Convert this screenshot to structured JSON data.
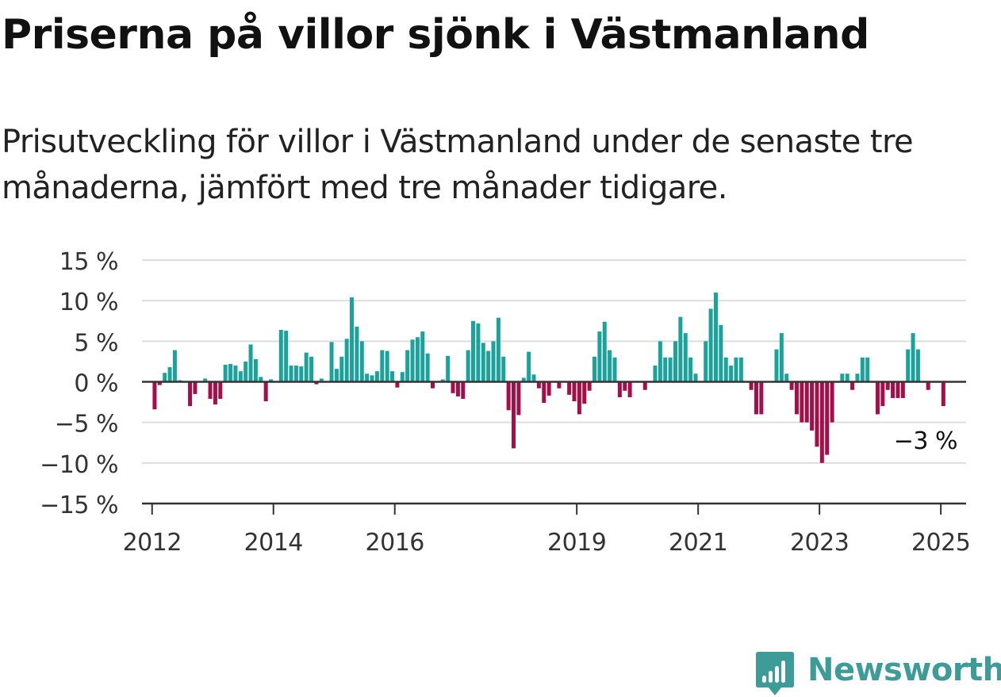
{
  "title": "Priserna på villor sjönk i Västmanland",
  "subtitle": "Prisutveckling för villor i Västmanland under de senaste tre månaderna, jämfört med tre månader tidigare.",
  "brand": {
    "name": "Newsworthy",
    "logo_icon": "bar-chart-bubble-icon",
    "color": "#3d9c98"
  },
  "colors": {
    "positive": "#1aa39b",
    "negative": "#a50e47",
    "axis": "#333333",
    "grid": "#dddddd",
    "text": "#333333"
  },
  "chart_data": {
    "type": "bar",
    "title": "Priserna på villor sjönk i Västmanland",
    "xlabel": "",
    "ylabel": "",
    "unit": "%",
    "ylim": [
      -15,
      15
    ],
    "yticks": [
      15,
      10,
      5,
      0,
      -5,
      -10,
      -15
    ],
    "ytick_labels": [
      "15 %",
      "10 %",
      "5 %",
      "0 %",
      "−5 %",
      "−10 %",
      "−15 %"
    ],
    "grid": true,
    "x_range": [
      "2011-11",
      "2025-06"
    ],
    "xticks": [
      {
        "label": "2012",
        "date": "2012-01"
      },
      {
        "label": "2014",
        "date": "2014-01"
      },
      {
        "label": "2016",
        "date": "2016-01"
      },
      {
        "label": "2019",
        "date": "2019-01"
      },
      {
        "label": "2021",
        "date": "2021-01"
      },
      {
        "label": "2023",
        "date": "2023-01"
      },
      {
        "label": "2025",
        "date": "2025-01"
      }
    ],
    "annotation": {
      "text": "−3 %",
      "date": "2025-01",
      "value": -3
    },
    "series": [
      {
        "x": [
          "2012-01",
          "2012-02",
          "2012-03",
          "2012-04",
          "2012-05",
          "2012-06",
          "2012-07",
          "2012-08",
          "2012-09",
          "2012-10",
          "2012-11",
          "2012-12",
          "2013-01",
          "2013-02",
          "2013-03",
          "2013-04",
          "2013-05",
          "2013-06",
          "2013-07",
          "2013-08",
          "2013-09",
          "2013-10",
          "2013-11",
          "2013-12",
          "2014-01",
          "2014-02",
          "2014-03",
          "2014-04",
          "2014-05",
          "2014-06",
          "2014-07",
          "2014-08",
          "2014-09",
          "2014-10",
          "2014-11",
          "2014-12",
          "2015-01",
          "2015-02",
          "2015-03",
          "2015-04",
          "2015-05",
          "2015-06",
          "2015-07",
          "2015-08",
          "2015-09",
          "2015-10",
          "2015-11",
          "2015-12",
          "2016-01",
          "2016-02",
          "2016-03",
          "2016-04",
          "2016-05",
          "2016-06",
          "2016-07",
          "2016-08",
          "2016-09",
          "2016-10",
          "2016-11",
          "2016-12",
          "2017-01",
          "2017-02",
          "2017-03",
          "2017-04",
          "2017-05",
          "2017-06",
          "2017-07",
          "2017-08",
          "2017-09",
          "2017-10",
          "2017-11",
          "2017-12",
          "2018-01",
          "2018-02",
          "2018-03",
          "2018-04",
          "2018-05",
          "2018-06",
          "2018-07",
          "2018-08",
          "2018-09",
          "2018-10",
          "2018-11",
          "2018-12",
          "2019-01",
          "2019-02",
          "2019-03",
          "2019-04",
          "2019-05",
          "2019-06",
          "2019-07",
          "2019-08",
          "2019-09",
          "2019-10",
          "2019-11",
          "2019-12",
          "2020-01",
          "2020-02",
          "2020-03",
          "2020-04",
          "2020-05",
          "2020-06",
          "2020-07",
          "2020-08",
          "2020-09",
          "2020-10",
          "2020-11",
          "2020-12",
          "2021-01",
          "2021-02",
          "2021-03",
          "2021-04",
          "2021-05",
          "2021-06",
          "2021-07",
          "2021-08",
          "2021-09",
          "2021-10",
          "2021-11",
          "2021-12",
          "2022-01",
          "2022-02",
          "2022-03",
          "2022-04",
          "2022-05",
          "2022-06",
          "2022-07",
          "2022-08",
          "2022-09",
          "2022-10",
          "2022-11",
          "2022-12",
          "2023-01",
          "2023-02",
          "2023-03",
          "2023-04",
          "2023-05",
          "2023-06",
          "2023-07",
          "2023-08",
          "2023-09",
          "2023-10",
          "2023-11",
          "2023-12",
          "2024-01",
          "2024-02",
          "2024-03",
          "2024-04",
          "2024-05",
          "2024-06",
          "2024-07",
          "2024-08",
          "2024-09",
          "2024-10",
          "2024-11",
          "2024-12",
          "2025-01"
        ],
        "values": [
          -3.4,
          -0.4,
          1.1,
          1.8,
          3.9,
          0.2,
          0,
          -3.0,
          -1.5,
          0,
          0.4,
          -2.1,
          -2.8,
          -2.1,
          2.1,
          2.2,
          2.0,
          1.3,
          2.5,
          4.6,
          2.8,
          0.6,
          -2.4,
          0.3,
          0,
          6.4,
          6.3,
          2.0,
          2.0,
          1.9,
          3.6,
          3.1,
          -0.3,
          0.4,
          0,
          4.9,
          1.6,
          3.1,
          5.3,
          10.4,
          6.8,
          5.0,
          1.0,
          0.8,
          1.3,
          3.9,
          3.8,
          1.3,
          -0.7,
          1.2,
          3.9,
          5.2,
          5.5,
          6.2,
          3.5,
          -0.8,
          0,
          0.3,
          3.2,
          -1.4,
          -1.8,
          -2.1,
          3.9,
          7.5,
          7.2,
          4.8,
          3.8,
          5.0,
          7.9,
          3.1,
          -3.5,
          -8.2,
          -4.1,
          0.5,
          3.7,
          0.9,
          -0.8,
          -2.6,
          -1.7,
          0,
          -0.8,
          0,
          -1.6,
          -2.4,
          -4.0,
          -2.7,
          -1.1,
          3.1,
          6.2,
          7.4,
          3.9,
          3.0,
          -1.9,
          -1.1,
          -1.9,
          0,
          0,
          -1.0,
          0,
          2.0,
          5.0,
          3.0,
          3.0,
          5.0,
          8.0,
          6.0,
          3.0,
          1.0,
          0,
          5.0,
          9.0,
          11.0,
          7.0,
          3.0,
          2.0,
          3.0,
          3.0,
          0,
          -1.0,
          -4.0,
          -4.0,
          0,
          0,
          4.0,
          6.0,
          1.0,
          -1.0,
          -4.0,
          -5.0,
          -5.0,
          -6.0,
          -8.0,
          -10.0,
          -9.0,
          -5.0,
          0,
          1.0,
          1.0,
          -1.0,
          1.0,
          3.0,
          3.0,
          0,
          -4.0,
          -3.0,
          -1.0,
          -2.0,
          -2.0,
          -2.0,
          4.0,
          6.0,
          4.0,
          0,
          -1.0,
          0,
          0,
          -3.0
        ]
      }
    ]
  }
}
